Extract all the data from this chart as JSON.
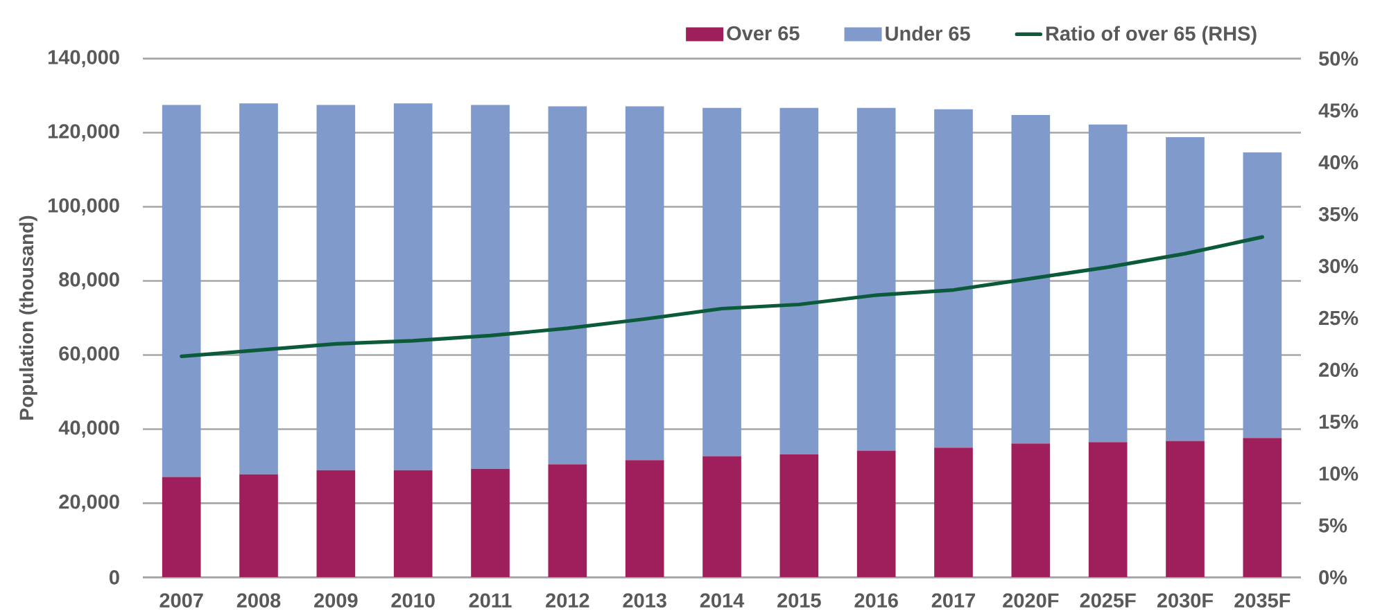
{
  "chart_data": {
    "type": "bar",
    "stacked": true,
    "ylabel": "Population (thousand)",
    "categories": [
      "2007",
      "2008",
      "2009",
      "2010",
      "2011",
      "2012",
      "2013",
      "2014",
      "2015",
      "2016",
      "2017",
      "2020F",
      "2025F",
      "2030F",
      "2035F"
    ],
    "series": [
      {
        "name": "Over 65",
        "color": "#9e1f5c",
        "values": [
          27100,
          27800,
          28900,
          28900,
          29300,
          30500,
          31600,
          32700,
          33200,
          34200,
          35000,
          36100,
          36500,
          36800,
          37600
        ]
      },
      {
        "name": "Under 65",
        "color": "#7f9acb",
        "values": [
          100400,
          100100,
          98600,
          99000,
          98200,
          96600,
          95500,
          94000,
          93500,
          92500,
          91300,
          88700,
          85700,
          82000,
          77100
        ]
      },
      {
        "name": "Ratio of over 65 (RHS)",
        "type": "line",
        "axis": "y2",
        "color": "#0b5a3a",
        "values": [
          21.3,
          21.9,
          22.5,
          22.8,
          23.3,
          24.0,
          24.9,
          25.9,
          26.3,
          27.2,
          27.7,
          28.8,
          29.9,
          31.2,
          32.8
        ]
      }
    ],
    "ylim": [
      0,
      140000
    ],
    "yticks": [
      0,
      {
        "value": 20000,
        "label": "20,000"
      },
      {
        "value": 40000,
        "label": "40,000"
      },
      {
        "value": 60000,
        "label": "60,000"
      },
      {
        "value": 80000,
        "label": "80,000"
      },
      {
        "value": 100000,
        "label": "100,000"
      },
      {
        "value": 120000,
        "label": "120,000"
      },
      {
        "value": 140000,
        "label": "140,000"
      }
    ],
    "y2lim": [
      0,
      50
    ],
    "y2ticks": [
      {
        "value": 0,
        "label": "0%"
      },
      {
        "value": 5,
        "label": "5%"
      },
      {
        "value": 10,
        "label": "10%"
      },
      {
        "value": 15,
        "label": "15%"
      },
      {
        "value": 20,
        "label": "20%"
      },
      {
        "value": 25,
        "label": "25%"
      },
      {
        "value": 30,
        "label": "30%"
      },
      {
        "value": 35,
        "label": "35%"
      },
      {
        "value": 40,
        "label": "40%"
      },
      {
        "value": 45,
        "label": "45%"
      },
      {
        "value": 50,
        "label": "50%"
      }
    ],
    "grid": "y",
    "legend": "top right"
  }
}
